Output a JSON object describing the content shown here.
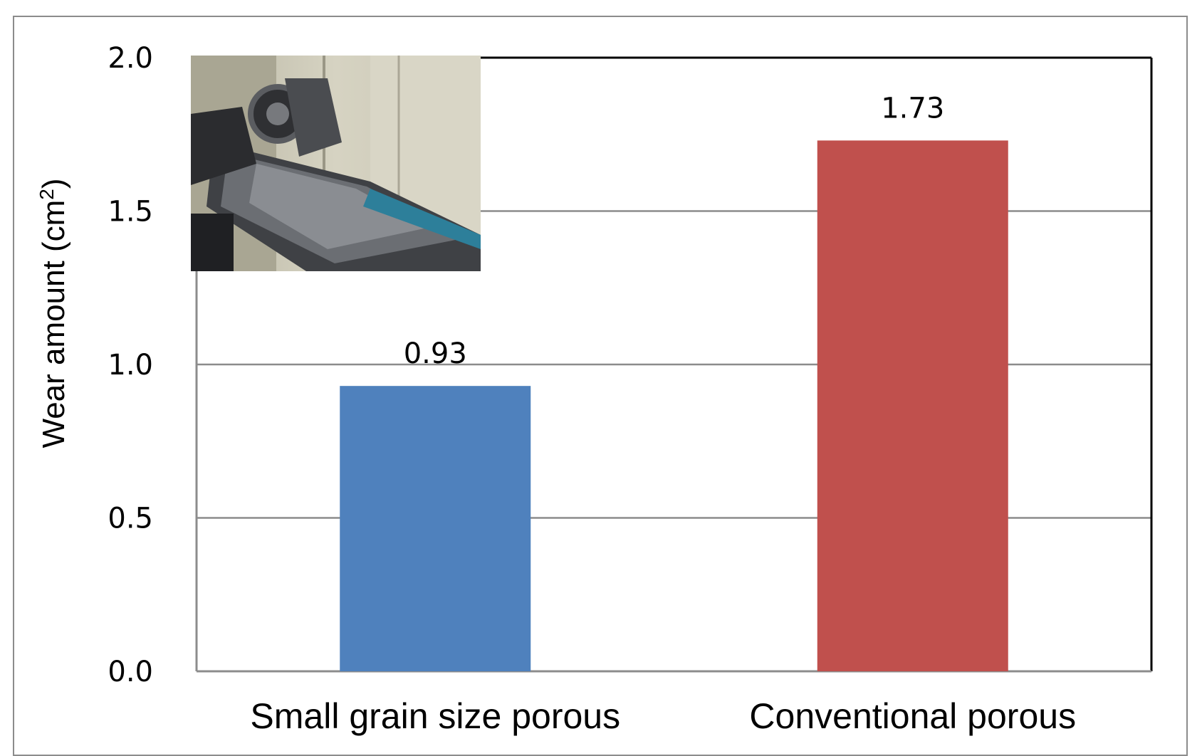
{
  "chart_data": {
    "type": "bar",
    "categories": [
      "Small grain size porous",
      "Conventional porous"
    ],
    "values": [
      0.93,
      1.73
    ],
    "value_labels": [
      "0.93",
      "1.73"
    ],
    "colors": [
      "#4f81bd",
      "#c0504d"
    ],
    "ylabel": "Wear amount (cm",
    "ylabel_sup": "2",
    "ylabel_close": ")",
    "ylim": [
      0,
      2.0
    ],
    "yticks": [
      0.0,
      0.5,
      1.0,
      1.5,
      2.0
    ],
    "ytick_labels": [
      "0.0",
      "0.5",
      "1.0",
      "1.5",
      "2.0"
    ],
    "grid": true,
    "inset": "photograph of wear test machine (top-left of plot area)"
  }
}
